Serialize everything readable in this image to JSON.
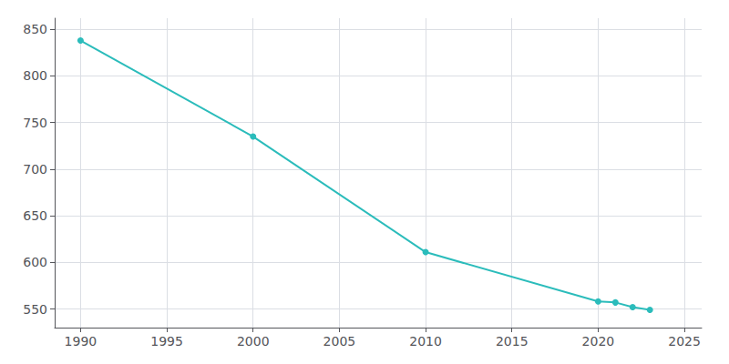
{
  "chart_data": {
    "type": "line",
    "x": [
      1990,
      2000,
      2010,
      2020,
      2021,
      2022,
      2023
    ],
    "values": [
      838,
      735,
      611,
      558,
      557,
      552,
      549
    ],
    "color": "#2bbcbb",
    "marker": "circle",
    "xlim": [
      1988.5,
      2026
    ],
    "ylim": [
      530,
      862
    ],
    "xticks": [
      1990,
      1995,
      2000,
      2005,
      2010,
      2015,
      2020,
      2025
    ],
    "yticks": [
      550,
      600,
      650,
      700,
      750,
      800,
      850
    ],
    "grid": true
  }
}
